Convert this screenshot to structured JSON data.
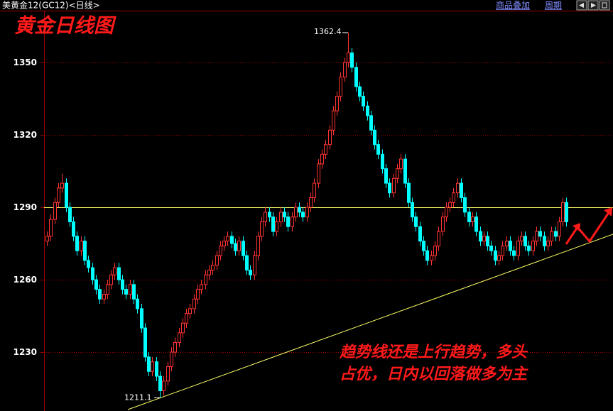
{
  "chart_data": {
    "type": "candlestick",
    "title": "美黄金12(GC12)<日线>",
    "toolbar": [
      "商品叠加",
      "周期"
    ],
    "annotations": [
      "黄金日线图",
      "趋势线还是上行趋势，多头",
      "占优，日内以回落做多为主"
    ],
    "up_color": "#ff3232",
    "down_color": "#00ffff",
    "grid_color": "#a00000",
    "grid": true,
    "reference_line": 1290,
    "reference_color": "#ffff66",
    "ylim": [
      1205.6,
      1371.8
    ],
    "yticks": [
      1230,
      1260,
      1290,
      1320,
      1350
    ],
    "open": [
      1276,
      1278,
      1285,
      1292,
      1298,
      1300,
      1290,
      1284,
      1278,
      1272,
      1276,
      1268,
      1265,
      1260,
      1256,
      1252,
      1254,
      1258,
      1262,
      1265,
      1260,
      1256,
      1254,
      1258,
      1252,
      1248,
      1240,
      1228,
      1222,
      1226,
      1220,
      1214,
      1218,
      1224,
      1230,
      1234,
      1238,
      1242,
      1246,
      1248,
      1252,
      1256,
      1258,
      1262,
      1264,
      1266,
      1270,
      1274,
      1276,
      1278,
      1275,
      1272,
      1276,
      1270,
      1264,
      1262,
      1270,
      1278,
      1284,
      1288,
      1286,
      1280,
      1284,
      1288,
      1286,
      1282,
      1286,
      1290,
      1288,
      1286,
      1290,
      1294,
      1300,
      1308,
      1312,
      1316,
      1322,
      1330,
      1336,
      1344,
      1350,
      1354,
      1348,
      1340,
      1336,
      1332,
      1328,
      1322,
      1316,
      1312,
      1306,
      1300,
      1296,
      1302,
      1306,
      1310,
      1300,
      1292,
      1286,
      1282,
      1276,
      1272,
      1268,
      1270,
      1274,
      1280,
      1286,
      1290,
      1292,
      1296,
      1300,
      1294,
      1288,
      1284,
      1286,
      1280,
      1276,
      1278,
      1274,
      1272,
      1268,
      1270,
      1274,
      1276,
      1272,
      1270,
      1276,
      1278,
      1274,
      1272,
      1276,
      1280,
      1278,
      1274,
      1276,
      1280,
      1278,
      1284,
      1292
    ],
    "high": [
      1280,
      1287,
      1294,
      1300,
      1304,
      1302,
      1292,
      1286,
      1280,
      1278,
      1278,
      1270,
      1267,
      1262,
      1258,
      1256,
      1260,
      1264,
      1267,
      1267,
      1262,
      1258,
      1260,
      1260,
      1254,
      1250,
      1242,
      1230,
      1228,
      1228,
      1222,
      1220,
      1226,
      1232,
      1236,
      1240,
      1244,
      1248,
      1250,
      1254,
      1258,
      1260,
      1264,
      1266,
      1268,
      1272,
      1276,
      1278,
      1280,
      1280,
      1277,
      1278,
      1278,
      1272,
      1266,
      1272,
      1280,
      1286,
      1290,
      1290,
      1288,
      1286,
      1290,
      1290,
      1288,
      1288,
      1292,
      1292,
      1290,
      1292,
      1296,
      1302,
      1310,
      1314,
      1318,
      1324,
      1332,
      1338,
      1346,
      1352,
      1362.4,
      1356,
      1350,
      1342,
      1338,
      1334,
      1330,
      1324,
      1318,
      1314,
      1308,
      1302,
      1304,
      1308,
      1312,
      1312,
      1302,
      1294,
      1288,
      1284,
      1278,
      1274,
      1272,
      1276,
      1282,
      1288,
      1292,
      1294,
      1298,
      1302,
      1302,
      1296,
      1290,
      1288,
      1288,
      1282,
      1280,
      1280,
      1276,
      1274,
      1272,
      1276,
      1278,
      1278,
      1274,
      1278,
      1280,
      1280,
      1276,
      1278,
      1282,
      1282,
      1280,
      1278,
      1282,
      1282,
      1286,
      1294,
      1294
    ],
    "low": [
      1274,
      1276,
      1283,
      1290,
      1296,
      1288,
      1282,
      1276,
      1270,
      1270,
      1266,
      1263,
      1258,
      1254,
      1250,
      1250,
      1252,
      1256,
      1260,
      1258,
      1254,
      1252,
      1252,
      1250,
      1246,
      1238,
      1226,
      1220,
      1220,
      1218,
      1211.1,
      1212,
      1216,
      1222,
      1228,
      1232,
      1236,
      1240,
      1244,
      1246,
      1250,
      1254,
      1256,
      1260,
      1262,
      1264,
      1268,
      1272,
      1274,
      1273,
      1270,
      1270,
      1268,
      1262,
      1260,
      1260,
      1268,
      1276,
      1282,
      1284,
      1278,
      1278,
      1282,
      1284,
      1280,
      1280,
      1284,
      1286,
      1284,
      1284,
      1288,
      1292,
      1298,
      1306,
      1310,
      1314,
      1320,
      1328,
      1334,
      1342,
      1348,
      1346,
      1338,
      1334,
      1330,
      1326,
      1320,
      1314,
      1310,
      1304,
      1298,
      1294,
      1294,
      1300,
      1304,
      1298,
      1290,
      1284,
      1280,
      1274,
      1270,
      1266,
      1266,
      1268,
      1272,
      1278,
      1284,
      1288,
      1290,
      1294,
      1292,
      1286,
      1282,
      1282,
      1278,
      1274,
      1274,
      1272,
      1270,
      1266,
      1266,
      1268,
      1272,
      1270,
      1268,
      1268,
      1274,
      1272,
      1270,
      1270,
      1274,
      1276,
      1272,
      1272,
      1274,
      1276,
      1276,
      1282,
      1282
    ],
    "close": [
      1278,
      1285,
      1292,
      1298,
      1300,
      1290,
      1284,
      1278,
      1272,
      1276,
      1268,
      1265,
      1260,
      1256,
      1252,
      1254,
      1258,
      1262,
      1265,
      1260,
      1256,
      1254,
      1258,
      1252,
      1248,
      1240,
      1228,
      1222,
      1226,
      1220,
      1214,
      1218,
      1224,
      1230,
      1234,
      1238,
      1242,
      1246,
      1248,
      1252,
      1256,
      1258,
      1262,
      1264,
      1266,
      1270,
      1274,
      1276,
      1278,
      1275,
      1272,
      1276,
      1270,
      1264,
      1262,
      1270,
      1278,
      1284,
      1288,
      1286,
      1280,
      1284,
      1288,
      1286,
      1282,
      1286,
      1290,
      1288,
      1286,
      1290,
      1294,
      1300,
      1308,
      1312,
      1316,
      1322,
      1330,
      1336,
      1344,
      1350,
      1354,
      1348,
      1340,
      1336,
      1332,
      1328,
      1322,
      1316,
      1312,
      1306,
      1300,
      1296,
      1302,
      1306,
      1310,
      1300,
      1292,
      1286,
      1282,
      1276,
      1272,
      1268,
      1270,
      1274,
      1280,
      1286,
      1290,
      1292,
      1296,
      1300,
      1294,
      1288,
      1284,
      1286,
      1280,
      1276,
      1278,
      1274,
      1272,
      1268,
      1270,
      1274,
      1276,
      1272,
      1270,
      1276,
      1278,
      1274,
      1272,
      1276,
      1280,
      1278,
      1274,
      1276,
      1280,
      1278,
      1284,
      1292,
      1284
    ],
    "high_label_index": 80,
    "low_label_index": 30
  }
}
